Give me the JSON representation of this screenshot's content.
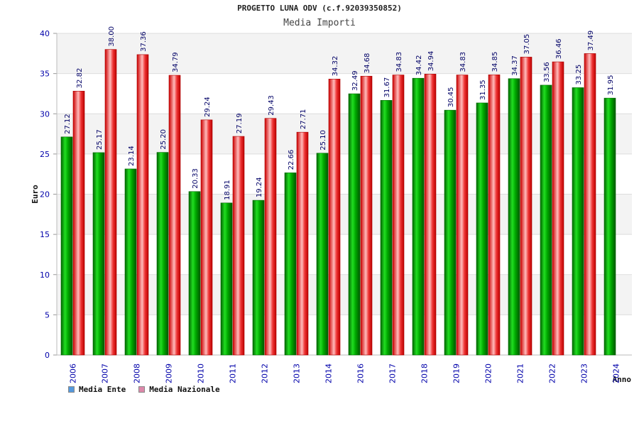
{
  "chart_data": {
    "type": "bar",
    "title": "PROGETTO LUNA ODV (c.f.92039350852)",
    "subtitle": "Media Importi",
    "ylabel": "Euro",
    "xlabel": "Anno",
    "ylim": [
      0,
      40
    ],
    "yticks": [
      0,
      5,
      10,
      15,
      20,
      25,
      30,
      35,
      40
    ],
    "grid": true,
    "legend_position": "bottom-left",
    "categories": [
      "2006",
      "2007",
      "2008",
      "2009",
      "2010",
      "2011",
      "2012",
      "2013",
      "2014",
      "2016",
      "2017",
      "2018",
      "2019",
      "2020",
      "2021",
      "2022",
      "2023",
      "2024"
    ],
    "series": [
      {
        "name": "Media Ente",
        "color": "#00aa00",
        "values": [
          27.12,
          25.17,
          23.14,
          25.2,
          20.33,
          18.91,
          19.24,
          22.66,
          25.1,
          32.49,
          31.67,
          34.42,
          30.45,
          31.35,
          34.37,
          33.56,
          33.25,
          31.95
        ],
        "labels": [
          "27.12",
          "25.17",
          "23.14",
          "25.20",
          "20.33",
          "18.91",
          "19.24",
          "22.66",
          "25.10",
          "32.49",
          "31.67",
          "34.42",
          "30.45",
          "31.35",
          "34.37",
          "33.56",
          "33.25",
          "31.95"
        ]
      },
      {
        "name": "Media Nazionale",
        "color": "#ee1111",
        "values": [
          32.82,
          38.0,
          37.36,
          34.79,
          29.24,
          27.19,
          29.43,
          27.71,
          34.32,
          34.68,
          34.83,
          34.94,
          34.83,
          34.85,
          37.05,
          36.46,
          37.49,
          null
        ],
        "labels": [
          "32.82",
          "38.00",
          "37.36",
          "34.79",
          "29.24",
          "27.19",
          "29.43",
          "27.71",
          "34.32",
          "34.68",
          "34.83",
          "34.94",
          "34.83",
          "34.85",
          "37.05",
          "36.46",
          "37.49",
          ""
        ]
      }
    ],
    "legend_swatch_colors": [
      "#5599dd",
      "#dd88aa"
    ]
  }
}
